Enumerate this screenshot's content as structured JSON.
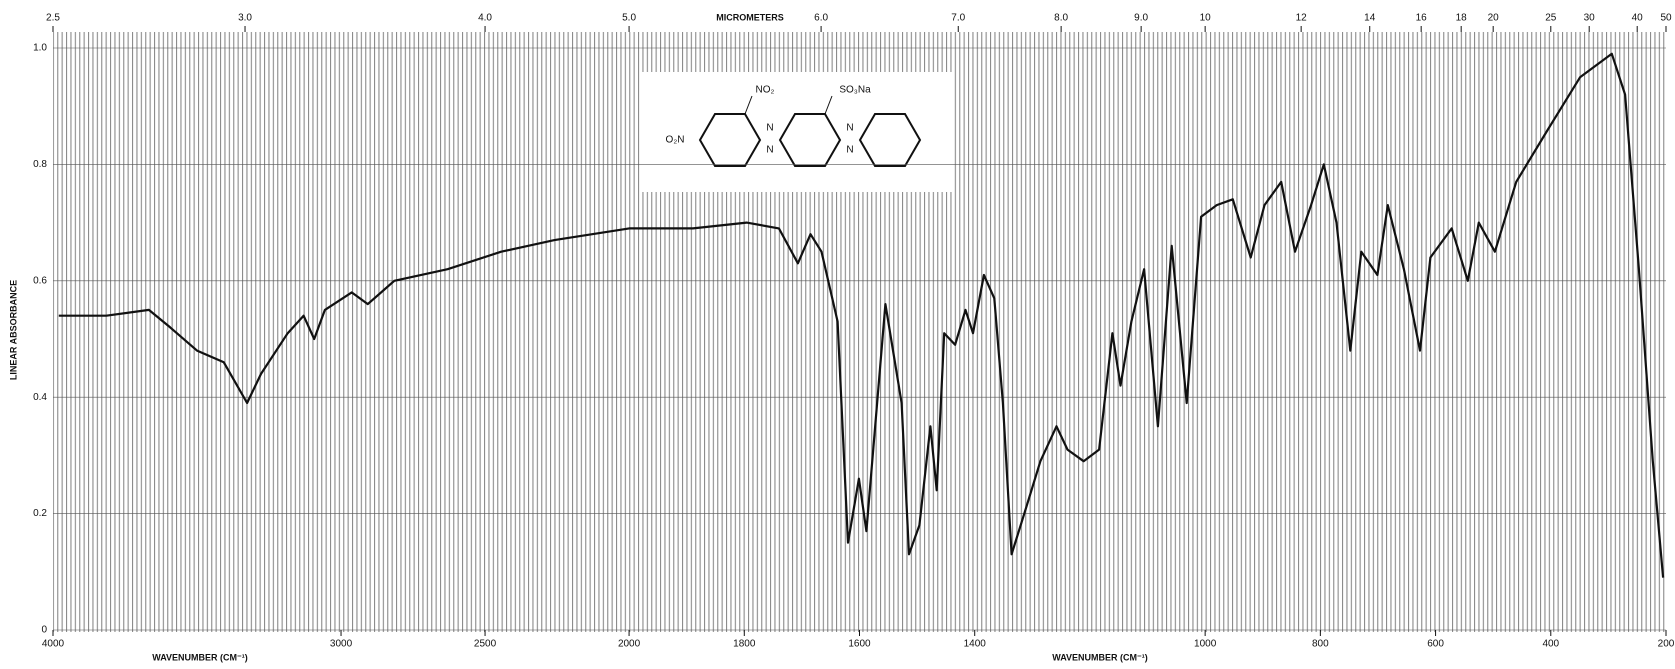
{
  "chart_data": {
    "type": "line",
    "title": "MICROMETERS",
    "x_label": "WAVENUMBER (CM⁻¹)",
    "y_label": "LINEAR ABSORBANCE",
    "structure_labels": [
      "O₂N",
      "NO₂",
      "N",
      "N",
      "SO₃Na",
      "N",
      "N"
    ],
    "color": "#111111",
    "x": [
      3980,
      3815,
      3667,
      3593,
      3500,
      3407,
      3326,
      3278,
      3185,
      3130,
      3093,
      3056,
      2963,
      2907,
      2815,
      2630,
      2444,
      2259,
      2000,
      1889,
      1796,
      1740,
      1707,
      1685,
      1666,
      1638,
      1620,
      1601,
      1588,
      1555,
      1527,
      1514,
      1496,
      1477,
      1466,
      1453,
      1434,
      1416,
      1403,
      1384,
      1366,
      1351,
      1336,
      1314,
      1286,
      1258,
      1239,
      1211,
      1184,
      1161,
      1147,
      1128,
      1106,
      1082,
      1058,
      1032,
      1007,
      980,
      952,
      921,
      897,
      868,
      844,
      816,
      794,
      772,
      748,
      729,
      701,
      683,
      655,
      627,
      609,
      572,
      544,
      525,
      497,
      460,
      405,
      349,
      294,
      271,
      247,
      223,
      205
    ],
    "values": [
      0.54,
      0.54,
      0.55,
      0.52,
      0.48,
      0.46,
      0.39,
      0.44,
      0.51,
      0.54,
      0.5,
      0.55,
      0.58,
      0.56,
      0.6,
      0.62,
      0.65,
      0.67,
      0.69,
      0.69,
      0.7,
      0.69,
      0.63,
      0.68,
      0.65,
      0.53,
      0.15,
      0.26,
      0.17,
      0.56,
      0.39,
      0.13,
      0.18,
      0.35,
      0.24,
      0.51,
      0.49,
      0.55,
      0.51,
      0.61,
      0.57,
      0.39,
      0.13,
      0.2,
      0.29,
      0.35,
      0.31,
      0.29,
      0.31,
      0.51,
      0.42,
      0.53,
      0.62,
      0.35,
      0.66,
      0.39,
      0.71,
      0.73,
      0.74,
      0.64,
      0.73,
      0.77,
      0.65,
      0.73,
      0.8,
      0.7,
      0.48,
      0.65,
      0.61,
      0.73,
      0.62,
      0.48,
      0.64,
      0.69,
      0.6,
      0.7,
      0.65,
      0.77,
      0.86,
      0.95,
      0.99,
      0.92,
      0.62,
      0.29,
      0.09
    ],
    "xlim": [
      4000,
      200
    ],
    "xticks": [
      4000,
      3000,
      2500,
      2000,
      1800,
      1600,
      1400,
      1000,
      800,
      600,
      400,
      200
    ],
    "x2ticks": [
      2.5,
      {
        "value": 3,
        "label": "3.0"
      },
      {
        "value": 4,
        "label": "4.0"
      },
      {
        "value": 5,
        "label": "5.0"
      },
      {
        "value": 6,
        "label": "6.0"
      },
      {
        "value": 7,
        "label": "7.0"
      },
      {
        "value": 8,
        "label": "8.0"
      },
      {
        "value": 9,
        "label": "9.0"
      },
      10,
      12,
      14,
      16,
      18,
      20,
      25,
      30,
      40,
      50
    ],
    "ylim": [
      0,
      1
    ],
    "yticks": [
      0,
      0.2,
      0.4,
      0.6,
      0.8,
      {
        "value": 1,
        "label": "1.0"
      }
    ],
    "grid": true
  }
}
